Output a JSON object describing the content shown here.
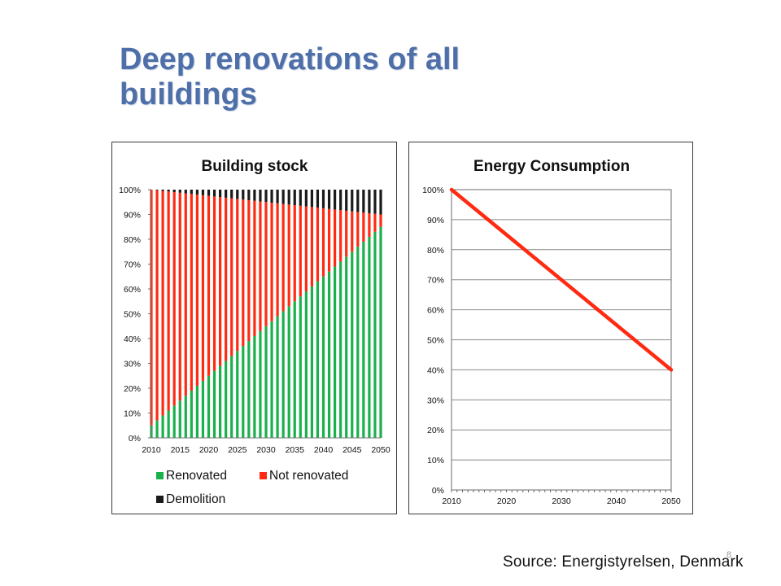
{
  "slide": {
    "title": "Deep renovations of all buildings",
    "source": "Source: Energistyrelsen, Denmark",
    "page_number": "8"
  },
  "chart_data": [
    {
      "type": "bar",
      "stacked": true,
      "title": "Building stock",
      "xlabel": "",
      "ylabel": "",
      "x_tick_labels": [
        "2010",
        "2015",
        "2020",
        "2025",
        "2030",
        "2035",
        "2040",
        "2045",
        "2050"
      ],
      "y_tick_labels": [
        "0%",
        "10%",
        "20%",
        "30%",
        "40%",
        "50%",
        "60%",
        "70%",
        "80%",
        "90%",
        "100%"
      ],
      "ylim": [
        0,
        100
      ],
      "x_range": [
        2010,
        2050
      ],
      "grid": false,
      "legend_position": "bottom",
      "categories": [
        2010,
        2011,
        2012,
        2013,
        2014,
        2015,
        2016,
        2017,
        2018,
        2019,
        2020,
        2021,
        2022,
        2023,
        2024,
        2025,
        2026,
        2027,
        2028,
        2029,
        2030,
        2031,
        2032,
        2033,
        2034,
        2035,
        2036,
        2037,
        2038,
        2039,
        2040,
        2041,
        2042,
        2043,
        2044,
        2045,
        2046,
        2047,
        2048,
        2049,
        2050
      ],
      "series": [
        {
          "name": "Renovated",
          "color": "#1ab04b",
          "values": [
            5,
            7,
            9,
            11,
            13,
            15,
            17,
            19,
            21,
            23,
            25,
            27,
            29,
            31,
            33,
            35,
            37,
            39,
            41,
            43,
            45,
            47,
            49,
            51,
            53,
            55,
            57,
            59,
            61,
            63,
            65,
            67,
            69,
            71,
            73,
            75,
            77,
            79,
            81,
            83,
            85
          ]
        },
        {
          "name": "Not renovated",
          "color": "#ff2a12",
          "values": [
            95,
            92.75,
            90.5,
            88.25,
            86,
            83.75,
            81.5,
            79.25,
            77,
            74.75,
            72.5,
            70.25,
            68,
            65.75,
            63.5,
            61.25,
            59,
            56.75,
            54.5,
            52.25,
            50,
            47.75,
            45.5,
            43.25,
            41,
            38.75,
            36.5,
            34.25,
            32,
            29.75,
            27.5,
            25.25,
            23,
            20.75,
            18.5,
            16.25,
            14,
            11.75,
            9.5,
            7.25,
            5
          ]
        },
        {
          "name": "Demolition",
          "color": "#1a1a1a",
          "values": [
            0,
            0.25,
            0.5,
            0.75,
            1,
            1.25,
            1.5,
            1.75,
            2,
            2.25,
            2.5,
            2.75,
            3,
            3.25,
            3.5,
            3.75,
            4,
            4.25,
            4.5,
            4.75,
            5,
            5.25,
            5.5,
            5.75,
            6,
            6.25,
            6.5,
            6.75,
            7,
            7.25,
            7.5,
            7.75,
            8,
            8.25,
            8.5,
            8.75,
            9,
            9.25,
            9.5,
            9.75,
            10
          ]
        }
      ]
    },
    {
      "type": "line",
      "title": "Energy Consumption",
      "xlabel": "",
      "ylabel": "",
      "x_tick_labels": [
        "2010",
        "2020",
        "2030",
        "2040",
        "2050"
      ],
      "y_tick_labels": [
        "0%",
        "10%",
        "20%",
        "30%",
        "40%",
        "50%",
        "60%",
        "70%",
        "80%",
        "90%",
        "100%"
      ],
      "ylim": [
        0,
        100
      ],
      "xlim": [
        2010,
        2050
      ],
      "grid": true,
      "series": [
        {
          "color": "#ff2a12",
          "x": [
            2010,
            2050
          ],
          "y": [
            100,
            40
          ]
        }
      ]
    }
  ]
}
